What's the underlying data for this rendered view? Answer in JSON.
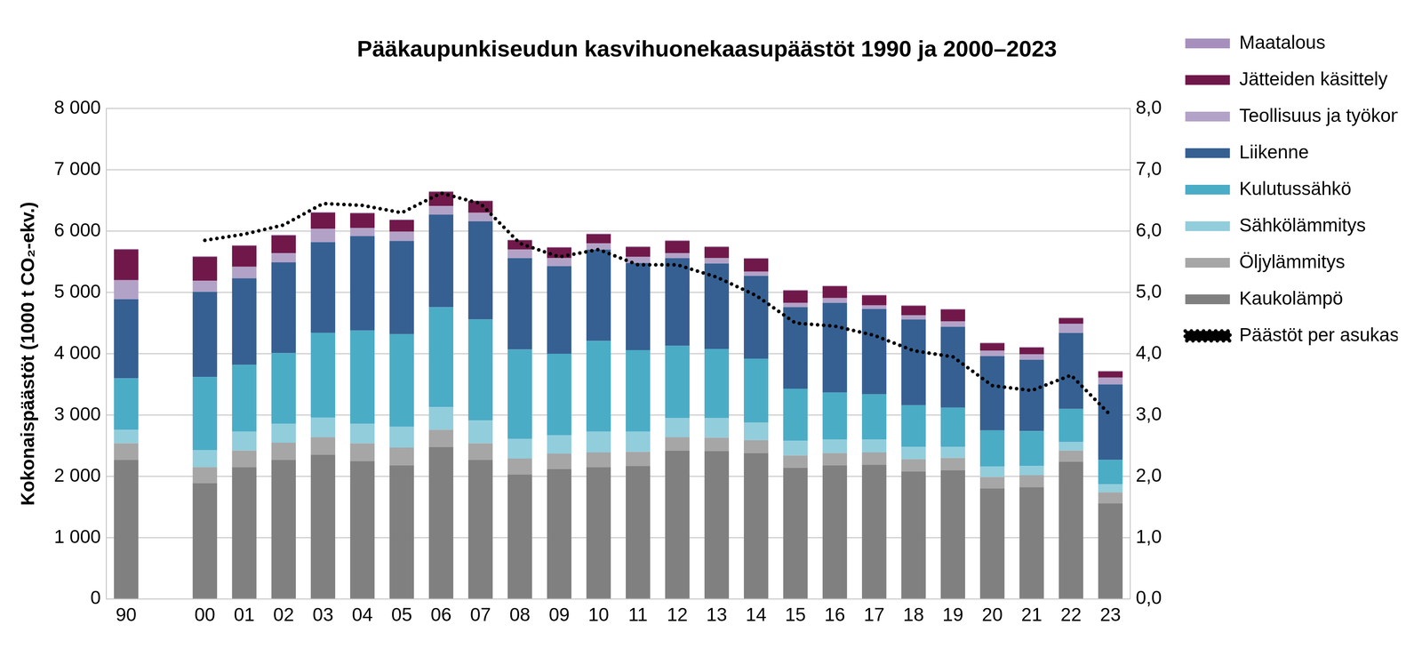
{
  "chart_data": {
    "type": "bar",
    "title": "Pääkaupunkiseudun kasvihuonekaasupäästöt 1990 ja 2000–2023",
    "y_label": "Kokonaispäästöt (1000 t CO₂-ekv.)",
    "stacked": true,
    "grid": true,
    "legend": "right",
    "categories": [
      "90",
      null,
      "00",
      "01",
      "02",
      "03",
      "04",
      "05",
      "06",
      "07",
      "08",
      "09",
      "10",
      "11",
      "12",
      "13",
      "14",
      "15",
      "16",
      "17",
      "18",
      "19",
      "20",
      "21",
      "22",
      "23"
    ],
    "ylim": [
      0,
      8000
    ],
    "yticks": [
      0,
      {
        "value": 1000,
        "label": "1 000"
      },
      {
        "value": 2000,
        "label": "2 000"
      },
      {
        "value": 3000,
        "label": "3 000"
      },
      {
        "value": 4000,
        "label": "4 000"
      },
      {
        "value": 5000,
        "label": "5 000"
      },
      {
        "value": 6000,
        "label": "6 000"
      },
      {
        "value": 7000,
        "label": "7 000"
      },
      {
        "value": 8000,
        "label": "8 000"
      }
    ],
    "y2lim": [
      0,
      8
    ],
    "y2ticks": [
      {
        "value": 0,
        "label": "0,0"
      },
      {
        "value": 1,
        "label": "1,0"
      },
      {
        "value": 2,
        "label": "2,0"
      },
      {
        "value": 3,
        "label": "3,0"
      },
      {
        "value": 4,
        "label": "4,0"
      },
      {
        "value": 5,
        "label": "5,0"
      },
      {
        "value": 6,
        "label": "6,0"
      },
      {
        "value": 7,
        "label": "7,0"
      },
      {
        "value": 8,
        "label": "8,0"
      }
    ],
    "series": [
      {
        "name": "Kaukolämpö",
        "color": "#808080",
        "values": [
          2270,
          null,
          1890,
          2150,
          2270,
          2350,
          2250,
          2180,
          2480,
          2270,
          2030,
          2120,
          2150,
          2170,
          2420,
          2410,
          2380,
          2140,
          2180,
          2190,
          2080,
          2100,
          1800,
          1820,
          2240,
          1560
        ]
      },
      {
        "name": "Öljylämmitys",
        "color": "#a6a6a6",
        "values": [
          270,
          null,
          260,
          270,
          280,
          290,
          290,
          290,
          280,
          270,
          260,
          250,
          240,
          230,
          220,
          220,
          210,
          200,
          200,
          200,
          200,
          200,
          190,
          200,
          180,
          180
        ]
      },
      {
        "name": "Sähkölämmitys",
        "color": "#92cddc",
        "values": [
          220,
          null,
          280,
          310,
          310,
          320,
          320,
          340,
          370,
          370,
          320,
          300,
          340,
          330,
          310,
          320,
          290,
          240,
          220,
          210,
          200,
          180,
          170,
          150,
          140,
          130
        ]
      },
      {
        "name": "Kulutussähkö",
        "color": "#4bacc6",
        "values": [
          840,
          null,
          1190,
          1090,
          1150,
          1380,
          1520,
          1510,
          1630,
          1650,
          1460,
          1330,
          1480,
          1330,
          1180,
          1130,
          1040,
          850,
          770,
          740,
          680,
          640,
          590,
          570,
          540,
          400
        ]
      },
      {
        "name": "Liikenne",
        "color": "#366092",
        "values": [
          1290,
          null,
          1390,
          1410,
          1480,
          1480,
          1540,
          1520,
          1510,
          1600,
          1490,
          1430,
          1490,
          1420,
          1430,
          1390,
          1350,
          1330,
          1460,
          1390,
          1400,
          1320,
          1210,
          1160,
          1240,
          1230
        ]
      },
      {
        "name": "Teollisuus ja työkoneet",
        "color": "#b3a2c7",
        "values": [
          310,
          null,
          180,
          190,
          150,
          220,
          130,
          150,
          140,
          140,
          140,
          130,
          100,
          100,
          80,
          90,
          70,
          70,
          80,
          60,
          70,
          90,
          90,
          90,
          150,
          110
        ]
      },
      {
        "name": "Jätteiden käsittely",
        "color": "#70184a",
        "values": [
          500,
          null,
          390,
          340,
          290,
          260,
          240,
          190,
          230,
          190,
          150,
          170,
          150,
          160,
          200,
          180,
          210,
          200,
          190,
          160,
          150,
          190,
          120,
          110,
          90,
          100
        ]
      },
      {
        "name": "Maatalous",
        "color": "#a68fbd",
        "values": [
          10,
          null,
          10,
          10,
          10,
          10,
          10,
          10,
          10,
          10,
          10,
          10,
          10,
          10,
          10,
          10,
          10,
          10,
          10,
          10,
          10,
          10,
          10,
          10,
          10,
          10
        ]
      },
      {
        "name": "Päästöt per asukas",
        "color": "#000000",
        "type": "line",
        "line_style": "dotted",
        "axis": "y2",
        "values": [
          null,
          null,
          5.85,
          5.95,
          6.1,
          6.45,
          6.42,
          6.3,
          6.62,
          6.45,
          5.8,
          5.58,
          5.7,
          5.45,
          5.45,
          5.25,
          4.95,
          4.5,
          4.45,
          4.3,
          4.05,
          3.95,
          3.48,
          3.4,
          3.65,
          3.0
        ]
      }
    ]
  }
}
